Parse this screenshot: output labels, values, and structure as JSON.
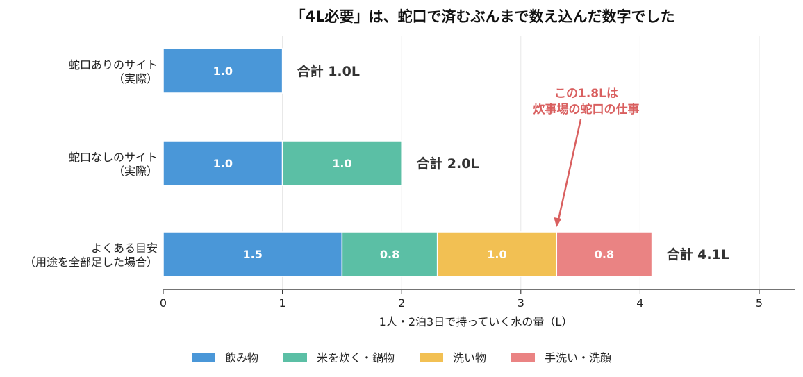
{
  "chart_data": {
    "type": "bar",
    "orientation": "horizontal",
    "stacked": true,
    "title": "「4L必要」は、蛇口で済むぶんまで数え込んだ数字でした",
    "xlabel": "1人・2泊3日で持っていく水の量（L）",
    "ylabel": "",
    "xlim": [
      0,
      5.3
    ],
    "xticks": [
      0,
      1,
      2,
      3,
      4,
      5
    ],
    "grid": true,
    "legend_position": "bottom",
    "categories": [
      [
        "蛇口ありのサイト",
        "（実際）"
      ],
      [
        "蛇口なしのサイト",
        "（実際）"
      ],
      [
        "よくある目安",
        "（用途を全部足した場合）"
      ]
    ],
    "series": [
      {
        "name": "飲み物",
        "color": "#4a97d8",
        "values": [
          1.0,
          1.0,
          1.5
        ],
        "labels": [
          "1.0",
          "1.0",
          "1.5"
        ]
      },
      {
        "name": "米を炊く・鍋物",
        "color": "#5bbfa5",
        "values": [
          0,
          1.0,
          0.8
        ],
        "labels": [
          "",
          "1.0",
          "0.8"
        ]
      },
      {
        "name": "洗い物",
        "color": "#f2c053",
        "values": [
          0,
          0,
          1.0
        ],
        "labels": [
          "",
          "",
          "1.0"
        ]
      },
      {
        "name": "手洗い・洗顔",
        "color": "#ea8383",
        "values": [
          0,
          0,
          0.8
        ],
        "labels": [
          "",
          "",
          "0.8"
        ]
      }
    ],
    "totals": [
      "合計 1.0L",
      "合計 2.0L",
      "合計 4.1L"
    ],
    "annotation": {
      "lines": [
        "この1.8Lは",
        "炊事場の蛇口の仕事"
      ],
      "color": "#d95f5f",
      "points_to": {
        "x": 3.3,
        "category": 2
      }
    }
  }
}
